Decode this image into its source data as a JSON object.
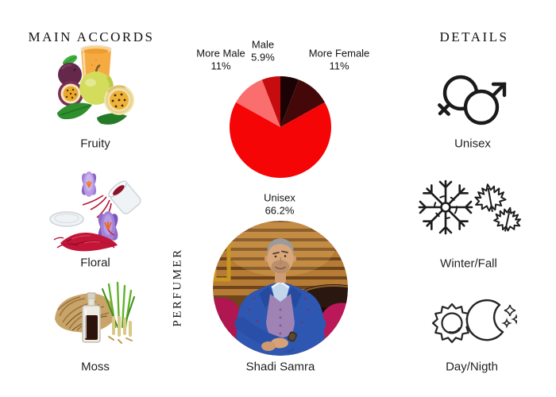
{
  "accords": {
    "title": "MAIN  ACCORDS",
    "items": [
      {
        "label": "Fruity",
        "icon": "passion-fruit-juice"
      },
      {
        "label": "Floral",
        "icon": "saffron-crocus"
      },
      {
        "label": "Moss",
        "icon": "vetiver-roots-bottle"
      }
    ]
  },
  "details": {
    "title": "DETAILS",
    "items": [
      {
        "label": "Unisex",
        "icon": "gender-unisex-icon"
      },
      {
        "label": "Winter/Fall",
        "icon": "snowflake-maple-leaves-icon"
      },
      {
        "label": "Day/Nigth",
        "icon": "sun-moon-icon"
      }
    ]
  },
  "perfumer": {
    "section_title": "PERFUMER",
    "name": "Shadi Samra"
  },
  "chart_data": {
    "type": "pie",
    "title": "",
    "start_angle_deg": 0,
    "direction": "clockwise",
    "slices": [
      {
        "name": "",
        "value": 5.9,
        "color": "#1b0305",
        "label_lines": []
      },
      {
        "name": "More Female",
        "value": 11.0,
        "color": "#440809",
        "label_lines": [
          "More Female",
          "11%"
        ]
      },
      {
        "name": "Unisex",
        "value": 66.2,
        "color": "#f50506",
        "label_lines": [
          "Unisex",
          "66.2%"
        ]
      },
      {
        "name": "More Male",
        "value": 11.0,
        "color": "#fb6e6e",
        "label_lines": [
          "More Male",
          "11%"
        ]
      },
      {
        "name": "Male",
        "value": 5.9,
        "color": "#c60c0e",
        "label_lines": [
          "Male",
          "5.9%"
        ]
      }
    ]
  }
}
